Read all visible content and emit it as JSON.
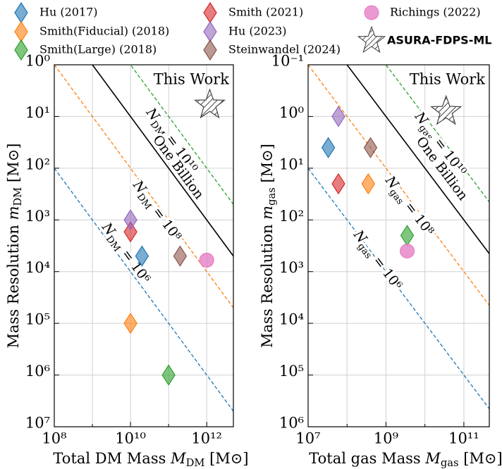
{
  "chart_data": [
    {
      "type": "scatter",
      "log_x": true,
      "log_y": true,
      "invert_y": true,
      "grid": true,
      "annotation": "This Work",
      "xlabel": [
        {
          "t": "Total DM Mass "
        },
        {
          "t": "M",
          "italic": true
        },
        {
          "t": "DM",
          "sub": true
        },
        {
          "t": "  [M⊙]"
        }
      ],
      "ylabel": [
        {
          "t": "Mass Resolution "
        },
        {
          "t": "m",
          "italic": true
        },
        {
          "t": "DM",
          "sub": true
        },
        {
          "t": "  [M⊙]"
        }
      ],
      "xlim": [
        100000000,
        5000000000000
      ],
      "xticks": [
        {
          "value": 100000000,
          "label": "10⁸"
        },
        {
          "value": 10000000000,
          "label": "10¹⁰"
        },
        {
          "value": 1000000000000,
          "label": "10¹²"
        }
      ],
      "x_unlabeled_ticks": [
        1000000000,
        100000000000
      ],
      "ylim": [
        1,
        10000000
      ],
      "yticks": [
        {
          "value": 1,
          "label": "10⁰"
        },
        {
          "value": 10,
          "label": "10¹"
        },
        {
          "value": 100,
          "label": "10²"
        },
        {
          "value": 1000,
          "label": "10³"
        },
        {
          "value": 10000,
          "label": "10⁴"
        },
        {
          "value": 100000,
          "label": "10⁵"
        },
        {
          "value": 1000000,
          "label": "10⁶"
        },
        {
          "value": 10000000,
          "label": "10⁷"
        }
      ],
      "lines": [
        {
          "n": 10000000000,
          "color": "#2ca02c",
          "dashed": true,
          "label": [
            {
              "t": "N",
              "italic": true
            },
            {
              "t": "DM",
              "sub": true
            },
            {
              "t": " = 10¹⁰"
            }
          ]
        },
        {
          "n": 1000000000,
          "color": "#000000",
          "dashed": false,
          "label": [
            {
              "t": "One Billion"
            }
          ]
        },
        {
          "n": 100000000,
          "color": "#ff7f0e",
          "dashed": true,
          "label": [
            {
              "t": "N",
              "italic": true
            },
            {
              "t": "DM",
              "sub": true
            },
            {
              "t": " = 10⁸"
            }
          ]
        },
        {
          "n": 1000000,
          "color": "#1f77b4",
          "dashed": true,
          "label": [
            {
              "t": "N",
              "italic": true
            },
            {
              "t": "DM",
              "sub": true
            },
            {
              "t": " = 10⁶"
            }
          ]
        }
      ],
      "series": [
        {
          "name": "Hu (2017)",
          "color": "#1f77b4",
          "marker": "diamond",
          "x": [
            20000000000
          ],
          "values": [
            5000
          ]
        },
        {
          "name": "Smith(Fiducial) (2018)",
          "color": "#ff7f0e",
          "marker": "diamond",
          "x": [
            10000000000
          ],
          "values": [
            100000
          ]
        },
        {
          "name": "Smith(Large) (2018)",
          "color": "#2ca02c",
          "marker": "diamond",
          "x": [
            100000000000
          ],
          "values": [
            1000000
          ]
        },
        {
          "name": "Smith (2021)",
          "color": "#d62728",
          "marker": "diamond",
          "x": [
            10000000000
          ],
          "values": [
            1700
          ]
        },
        {
          "name": "Hu (2023)",
          "color": "#9467bd",
          "marker": "diamond",
          "x": [
            10000000000
          ],
          "values": [
            1000
          ]
        },
        {
          "name": "Steinwandel (2024)",
          "color": "#8c564b",
          "marker": "diamond",
          "x": [
            200000000000
          ],
          "values": [
            5000
          ]
        },
        {
          "name": "Richings (2022)",
          "color": "#e377c2",
          "marker": "circle",
          "x": [
            1000000000000
          ],
          "values": [
            6000
          ]
        },
        {
          "name": "ASURA-FDPS-ML",
          "color": "#444444",
          "marker": "star",
          "x": [
            1200000000000
          ],
          "values": [
            6
          ]
        }
      ]
    },
    {
      "type": "scatter",
      "log_x": true,
      "log_y": true,
      "invert_y": true,
      "grid": true,
      "annotation": "This Work",
      "xlabel": [
        {
          "t": "Total gas Mass "
        },
        {
          "t": "M",
          "italic": true
        },
        {
          "t": "gas",
          "sub": true
        },
        {
          "t": "  [M⊙]"
        }
      ],
      "ylabel": [
        {
          "t": "Mass Resolution "
        },
        {
          "t": "m",
          "italic": true
        },
        {
          "t": "gas",
          "sub": true
        },
        {
          "t": "  [M⊙]"
        }
      ],
      "xlim": [
        10000000,
        450000000000
      ],
      "xticks": [
        {
          "value": 10000000,
          "label": "10⁷"
        },
        {
          "value": 1000000000,
          "label": "10⁹"
        },
        {
          "value": 100000000000,
          "label": "10¹¹"
        }
      ],
      "x_unlabeled_ticks": [
        100000000,
        10000000000
      ],
      "ylim": [
        0.1,
        1000000
      ],
      "yticks": [
        {
          "value": 0.1,
          "label": "10⁻¹"
        },
        {
          "value": 1,
          "label": "10⁰"
        },
        {
          "value": 10,
          "label": "10¹"
        },
        {
          "value": 100,
          "label": "10²"
        },
        {
          "value": 1000,
          "label": "10³"
        },
        {
          "value": 10000,
          "label": "10⁴"
        },
        {
          "value": 100000,
          "label": "10⁵"
        },
        {
          "value": 1000000,
          "label": "10⁶"
        }
      ],
      "lines": [
        {
          "n": 10000000000,
          "color": "#2ca02c",
          "dashed": true,
          "label": [
            {
              "t": "N",
              "italic": true
            },
            {
              "t": "gas",
              "sub": true
            },
            {
              "t": " = 10¹⁰"
            }
          ]
        },
        {
          "n": 1000000000,
          "color": "#000000",
          "dashed": false,
          "label": [
            {
              "t": "One Billion"
            }
          ]
        },
        {
          "n": 100000000,
          "color": "#ff7f0e",
          "dashed": true,
          "label": [
            {
              "t": "N",
              "italic": true
            },
            {
              "t": "gas",
              "sub": true
            },
            {
              "t": " = 10⁸"
            }
          ]
        },
        {
          "n": 1000000,
          "color": "#1f77b4",
          "dashed": true,
          "label": [
            {
              "t": "N",
              "italic": true
            },
            {
              "t": "gas",
              "sub": true
            },
            {
              "t": " = 10⁶"
            }
          ]
        }
      ],
      "series": [
        {
          "name": "Hu (2017)",
          "color": "#1f77b4",
          "marker": "diamond",
          "x": [
            33000000
          ],
          "values": [
            4
          ]
        },
        {
          "name": "Smith(Fiducial) (2018)",
          "color": "#ff7f0e",
          "marker": "diamond",
          "x": [
            350000000
          ],
          "values": [
            20
          ]
        },
        {
          "name": "Smith(Large) (2018)",
          "color": "#2ca02c",
          "marker": "diamond",
          "x": [
            3500000000
          ],
          "values": [
            200
          ]
        },
        {
          "name": "Smith (2021)",
          "color": "#d62728",
          "marker": "diamond",
          "x": [
            60000000
          ],
          "values": [
            20
          ]
        },
        {
          "name": "Hu (2023)",
          "color": "#9467bd",
          "marker": "diamond",
          "x": [
            60000000
          ],
          "values": [
            1
          ]
        },
        {
          "name": "Steinwandel (2024)",
          "color": "#8c564b",
          "marker": "diamond",
          "x": [
            400000000
          ],
          "values": [
            4
          ]
        },
        {
          "name": "Richings (2022)",
          "color": "#e377c2",
          "marker": "circle",
          "x": [
            3500000000
          ],
          "values": [
            400
          ]
        },
        {
          "name": "ASURA-FDPS-ML",
          "color": "#444444",
          "marker": "star",
          "x": [
            35000000000
          ],
          "values": [
            0.8
          ]
        }
      ]
    }
  ]
}
